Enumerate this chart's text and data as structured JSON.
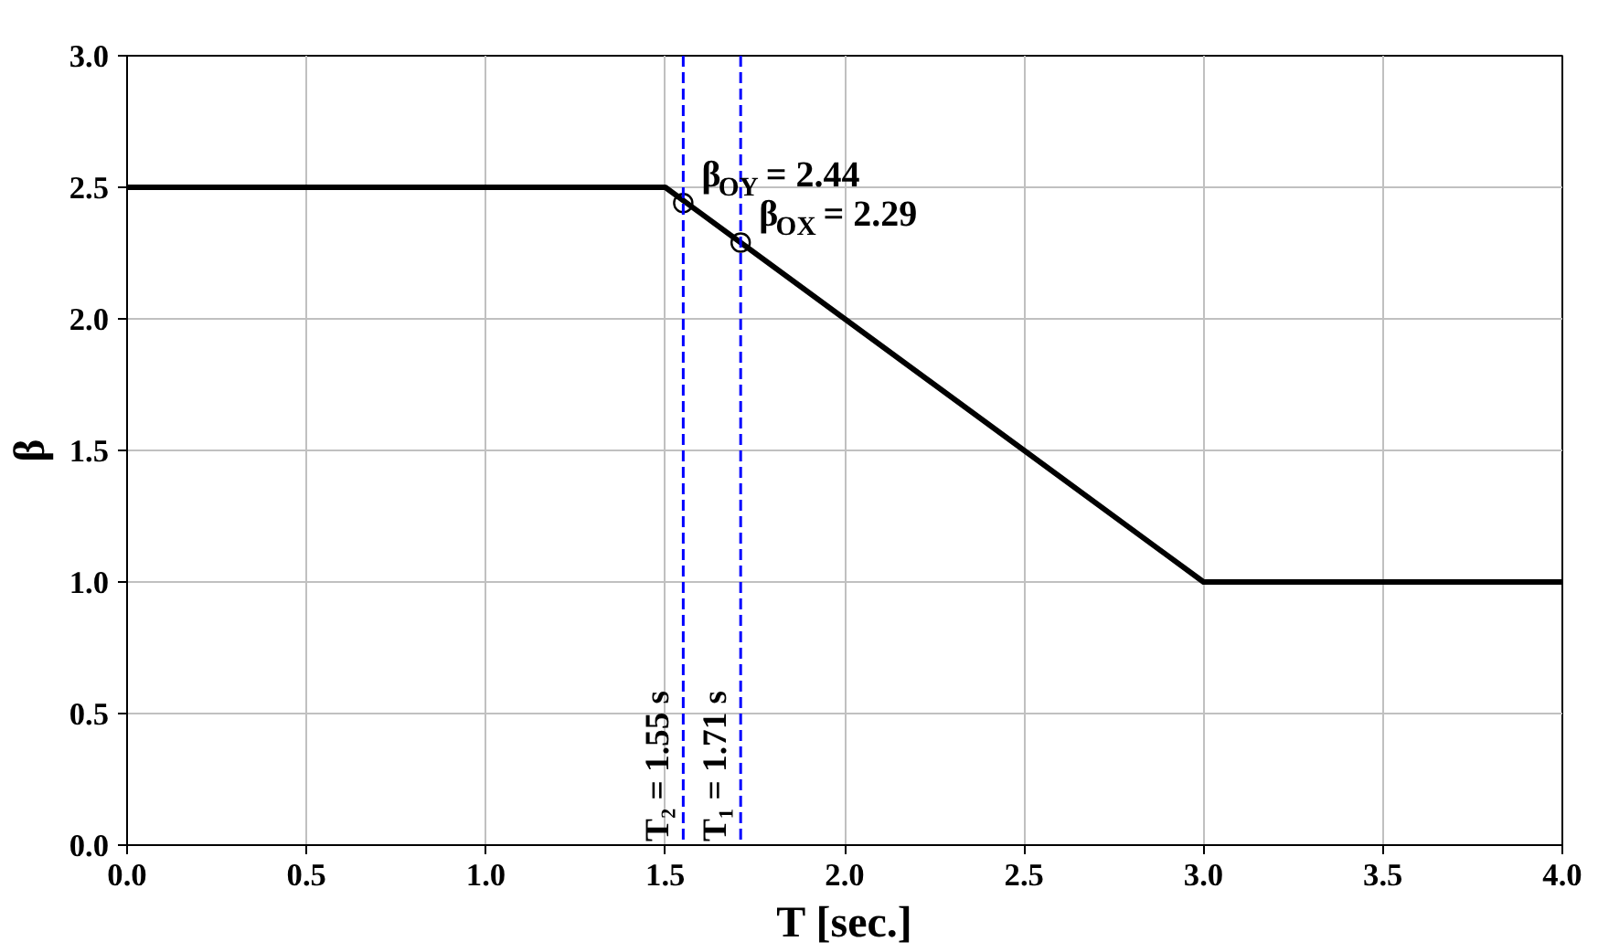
{
  "chart_data": {
    "type": "line",
    "xlabel": "T [sec.]",
    "ylabel": "β",
    "series": [
      {
        "color": "#000000",
        "x": [
          0,
          1.5,
          3.0,
          4.0
        ],
        "values": [
          2.5,
          2.5,
          1.0,
          1.0
        ],
        "line_style": "solid"
      },
      {
        "type": "scatter",
        "color": "#000000",
        "x": [
          1.55,
          1.71
        ],
        "values": [
          2.44,
          2.29
        ],
        "marker": "circle"
      }
    ],
    "xlim": [
      0,
      4
    ],
    "ylim": [
      0,
      3
    ],
    "xticks": [
      {
        "value": 0,
        "label": "0.0"
      },
      {
        "value": 0.5,
        "label": "0.5"
      },
      {
        "value": 1,
        "label": "1.0"
      },
      {
        "value": 1.5,
        "label": "1.5"
      },
      {
        "value": 2,
        "label": "2.0"
      },
      {
        "value": 2.5,
        "label": "2.5"
      },
      {
        "value": 3,
        "label": "3.0"
      },
      {
        "value": 3.5,
        "label": "3.5"
      },
      {
        "value": 4,
        "label": "4.0"
      }
    ],
    "yticks": [
      {
        "value": 0,
        "label": "0.0"
      },
      {
        "value": 0.5,
        "label": "0.5"
      },
      {
        "value": 1,
        "label": "1.0"
      },
      {
        "value": 1.5,
        "label": "1.5"
      },
      {
        "value": 2,
        "label": "2.0"
      },
      {
        "value": 2.5,
        "label": "2.5"
      },
      {
        "value": 3,
        "label": "3.0"
      }
    ],
    "grid": true,
    "ref_lines": [
      {
        "axis": "x",
        "value": 1.55,
        "label": "T₂ = 1.55 s",
        "color": "#0000ff",
        "line_style": "dashed"
      },
      {
        "axis": "x",
        "value": 1.71,
        "label": "T₁ = 1.71 s",
        "color": "#0000ff",
        "line_style": "dashed"
      }
    ],
    "annotations": [
      {
        "text": "β$_{OY}$ = 2.44",
        "x": 1.55,
        "y": 2.44
      },
      {
        "text": "β$_{OX}$ = 2.29",
        "x": 1.71,
        "y": 2.29
      }
    ]
  }
}
